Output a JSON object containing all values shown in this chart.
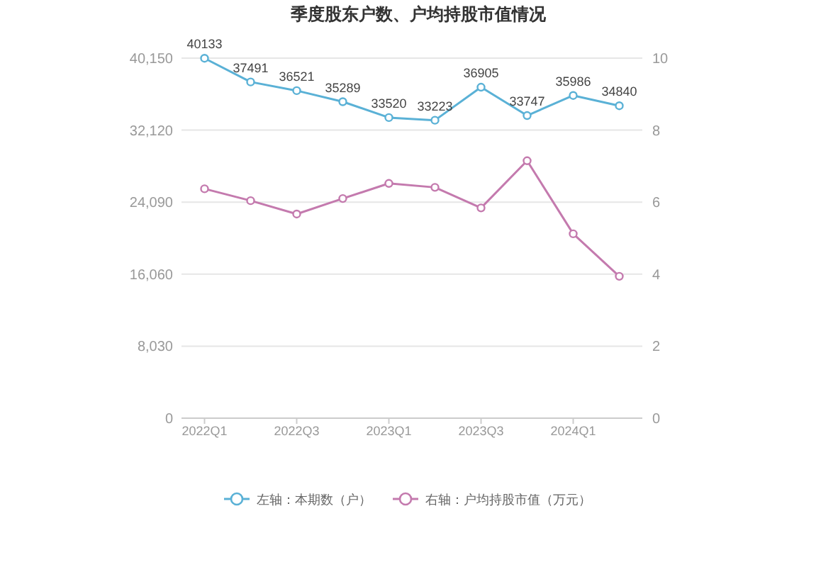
{
  "chart_data": {
    "type": "line",
    "title": "季度股东户数、户均持股市值情况",
    "categories": [
      "2022Q1",
      null,
      "2022Q3",
      null,
      "2023Q1",
      null,
      "2023Q3",
      null,
      "2024Q1",
      null
    ],
    "series": [
      {
        "name": "左轴：本期数（户）",
        "color": "#5ab1d6",
        "data_labels": true,
        "values": [
          40133,
          37491,
          36521,
          35289,
          33520,
          33223,
          36905,
          33747,
          35986,
          34840
        ]
      },
      {
        "name": "右轴：户均持股市值（万元）",
        "color": "#c47aae",
        "axis": "y2",
        "values": [
          6.37,
          6.04,
          5.67,
          6.1,
          6.52,
          6.41,
          5.84,
          7.15,
          5.12,
          3.94
        ]
      }
    ],
    "ylim": [
      0,
      40150
    ],
    "yticks": [
      0,
      {
        "value": 8030,
        "label": "8,030"
      },
      {
        "value": 16060,
        "label": "16,060"
      },
      {
        "value": 24090,
        "label": "24,090"
      },
      {
        "value": 32120,
        "label": "32,120"
      },
      {
        "value": 40150,
        "label": "40,150"
      }
    ],
    "y2lim": [
      0,
      10
    ],
    "y2ticks": [
      0,
      2,
      4,
      6,
      8,
      10
    ],
    "grid": "y",
    "legend": "bottom",
    "marker": "circle",
    "line_style": "solid"
  }
}
